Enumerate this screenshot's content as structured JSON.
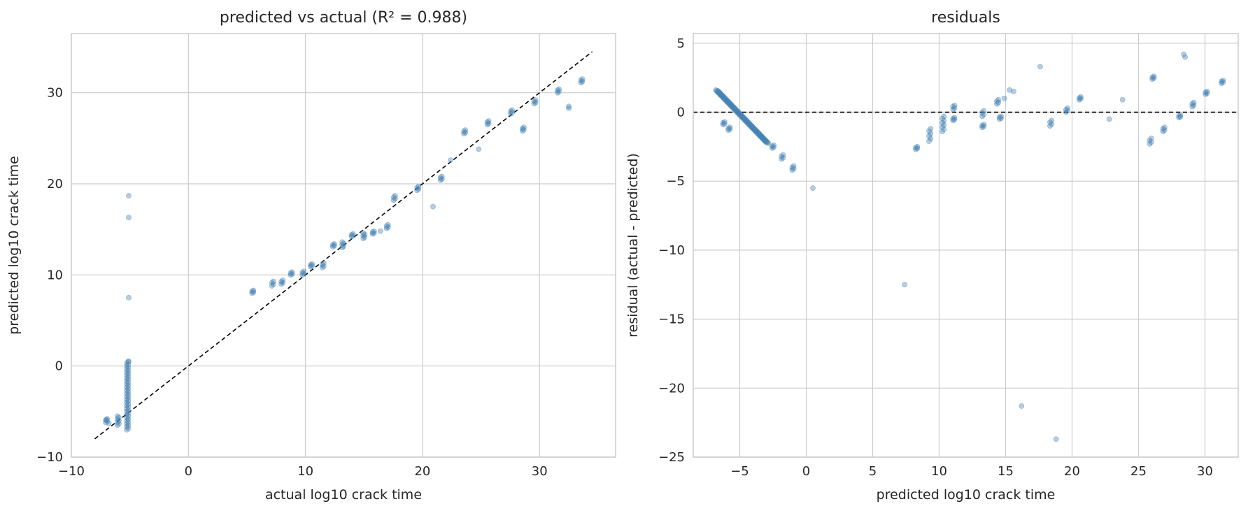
{
  "colors": {
    "points": "#4682b4",
    "grid": "#cccccc",
    "reference_line": "#000000",
    "background": "#ffffff"
  },
  "chart_data": [
    {
      "type": "scatter",
      "title": "predicted vs actual  (R² = 0.988)",
      "xlabel": "actual log10 crack time",
      "ylabel": "predicted log10 crack time",
      "xlim": [
        -10,
        36.5
      ],
      "ylim": [
        -10,
        36.5
      ],
      "xticks": [
        -10,
        0,
        10,
        20,
        30
      ],
      "yticks": [
        -10,
        0,
        10,
        20,
        30
      ],
      "grid": true,
      "reference_line": {
        "style": "dashed",
        "points": [
          [
            -8,
            -8
          ],
          [
            34.5,
            34.5
          ]
        ]
      },
      "clusters": [
        {
          "x": -7,
          "y": [
            -6.2,
            -5.8
          ]
        },
        {
          "x": -6,
          "y": [
            -6.5,
            -5.5
          ]
        },
        {
          "x": -5.2,
          "y": [
            -7.0,
            0.5
          ]
        },
        {
          "x": 5.5,
          "y": [
            8.0,
            8.3
          ]
        },
        {
          "x": 7.2,
          "y": [
            8.8,
            9.3
          ]
        },
        {
          "x": 8.0,
          "y": [
            9.0,
            9.4
          ]
        },
        {
          "x": 8.8,
          "y": [
            10.0,
            10.3
          ]
        },
        {
          "x": 9.8,
          "y": [
            10.0,
            10.4
          ]
        },
        {
          "x": 10.5,
          "y": [
            10.9,
            11.2
          ]
        },
        {
          "x": 11.5,
          "y": [
            10.8,
            11.3
          ]
        },
        {
          "x": 12.4,
          "y": [
            13.1,
            13.4
          ]
        },
        {
          "x": 13.2,
          "y": [
            13.0,
            13.6
          ]
        },
        {
          "x": 14.0,
          "y": [
            14.2,
            14.5
          ]
        },
        {
          "x": 15.0,
          "y": [
            14.0,
            14.6
          ]
        },
        {
          "x": 15.8,
          "y": [
            14.5,
            14.8
          ]
        },
        {
          "x": 17.0,
          "y": [
            15.1,
            15.5
          ]
        },
        {
          "x": 17.6,
          "y": [
            18.2,
            18.7
          ]
        },
        {
          "x": 19.6,
          "y": [
            19.3,
            19.7
          ]
        },
        {
          "x": 21.6,
          "y": [
            20.4,
            20.8
          ]
        },
        {
          "x": 23.6,
          "y": [
            25.5,
            25.9
          ]
        },
        {
          "x": 25.6,
          "y": [
            26.5,
            26.9
          ]
        },
        {
          "x": 27.6,
          "y": [
            27.7,
            28.1
          ]
        },
        {
          "x": 28.6,
          "y": [
            25.8,
            26.2
          ]
        },
        {
          "x": 29.6,
          "y": [
            28.8,
            29.2
          ]
        },
        {
          "x": 31.6,
          "y": [
            30.0,
            30.4
          ]
        },
        {
          "x": 33.6,
          "y": [
            31.1,
            31.5
          ]
        }
      ],
      "points": [
        [
          -5.1,
          18.7
        ],
        [
          -5.1,
          16.3
        ],
        [
          -5.1,
          7.5
        ],
        [
          -5.1,
          0.5
        ],
        [
          -6.8,
          -6.3
        ],
        [
          -7.0,
          -5.9
        ],
        [
          20.9,
          17.5
        ],
        [
          22.4,
          22.6
        ],
        [
          24.8,
          23.8
        ],
        [
          32.5,
          28.3
        ],
        [
          32.5,
          28.5
        ],
        [
          16.4,
          14.8
        ]
      ]
    },
    {
      "type": "scatter",
      "title": "residuals",
      "xlabel": "predicted log10 crack time",
      "ylabel": "residual (actual - predicted)",
      "xlim": [
        -8.5,
        32.5
      ],
      "ylim": [
        -25,
        5.7
      ],
      "xticks": [
        -5,
        0,
        5,
        10,
        15,
        20,
        25,
        30
      ],
      "yticks": [
        5,
        0,
        -5,
        -10,
        -15,
        -20,
        -25
      ],
      "grid": true,
      "reference_line": {
        "style": "dashed",
        "y": 0
      },
      "diagonal_band": {
        "x": [
          -6.8,
          -3.0
        ],
        "y": [
          1.6,
          -2.2
        ]
      },
      "clusters": [
        {
          "x": -6.2,
          "y": [
            -0.9,
            -0.7
          ]
        },
        {
          "x": -5.8,
          "y": [
            -1.3,
            -1.1
          ]
        },
        {
          "x": -2.5,
          "y": [
            -2.6,
            -2.4
          ]
        },
        {
          "x": -1.8,
          "y": [
            -3.4,
            -3.1
          ]
        },
        {
          "x": -1.0,
          "y": [
            -4.2,
            -3.9
          ]
        },
        {
          "x": 8.3,
          "y": [
            -2.7,
            -2.5
          ]
        },
        {
          "x": 9.3,
          "y": [
            -2.1,
            -1.2
          ]
        },
        {
          "x": 10.3,
          "y": [
            -1.4,
            -0.3
          ]
        },
        {
          "x": 11.1,
          "y": [
            0.2,
            0.5
          ]
        },
        {
          "x": 11.1,
          "y": [
            -0.6,
            -0.4
          ]
        },
        {
          "x": 13.3,
          "y": [
            -1.1,
            -0.9
          ]
        },
        {
          "x": 13.3,
          "y": [
            -0.3,
            0.1
          ]
        },
        {
          "x": 14.4,
          "y": [
            0.6,
            0.9
          ]
        },
        {
          "x": 14.6,
          "y": [
            -0.5,
            -0.3
          ]
        },
        {
          "x": 18.4,
          "y": [
            -1.0,
            -0.6
          ]
        },
        {
          "x": 19.6,
          "y": [
            0.0,
            0.3
          ]
        },
        {
          "x": 20.6,
          "y": [
            0.9,
            1.1
          ]
        },
        {
          "x": 25.9,
          "y": [
            -2.3,
            -1.9
          ]
        },
        {
          "x": 26.1,
          "y": [
            2.4,
            2.6
          ]
        },
        {
          "x": 26.9,
          "y": [
            -1.4,
            -1.1
          ]
        },
        {
          "x": 28.1,
          "y": [
            -0.4,
            -0.2
          ]
        },
        {
          "x": 29.1,
          "y": [
            0.4,
            0.7
          ]
        },
        {
          "x": 30.1,
          "y": [
            1.3,
            1.5
          ]
        },
        {
          "x": 31.3,
          "y": [
            2.1,
            2.3
          ]
        }
      ],
      "points": [
        [
          0.5,
          -5.5
        ],
        [
          7.4,
          -12.5
        ],
        [
          16.2,
          -21.3
        ],
        [
          18.8,
          -23.7
        ],
        [
          17.6,
          3.3
        ],
        [
          28.4,
          4.2
        ],
        [
          28.5,
          4.0
        ],
        [
          23.8,
          0.9
        ],
        [
          22.8,
          -0.5
        ],
        [
          15.3,
          1.6
        ],
        [
          15.6,
          1.5
        ],
        [
          14.9,
          1.0
        ]
      ]
    }
  ]
}
